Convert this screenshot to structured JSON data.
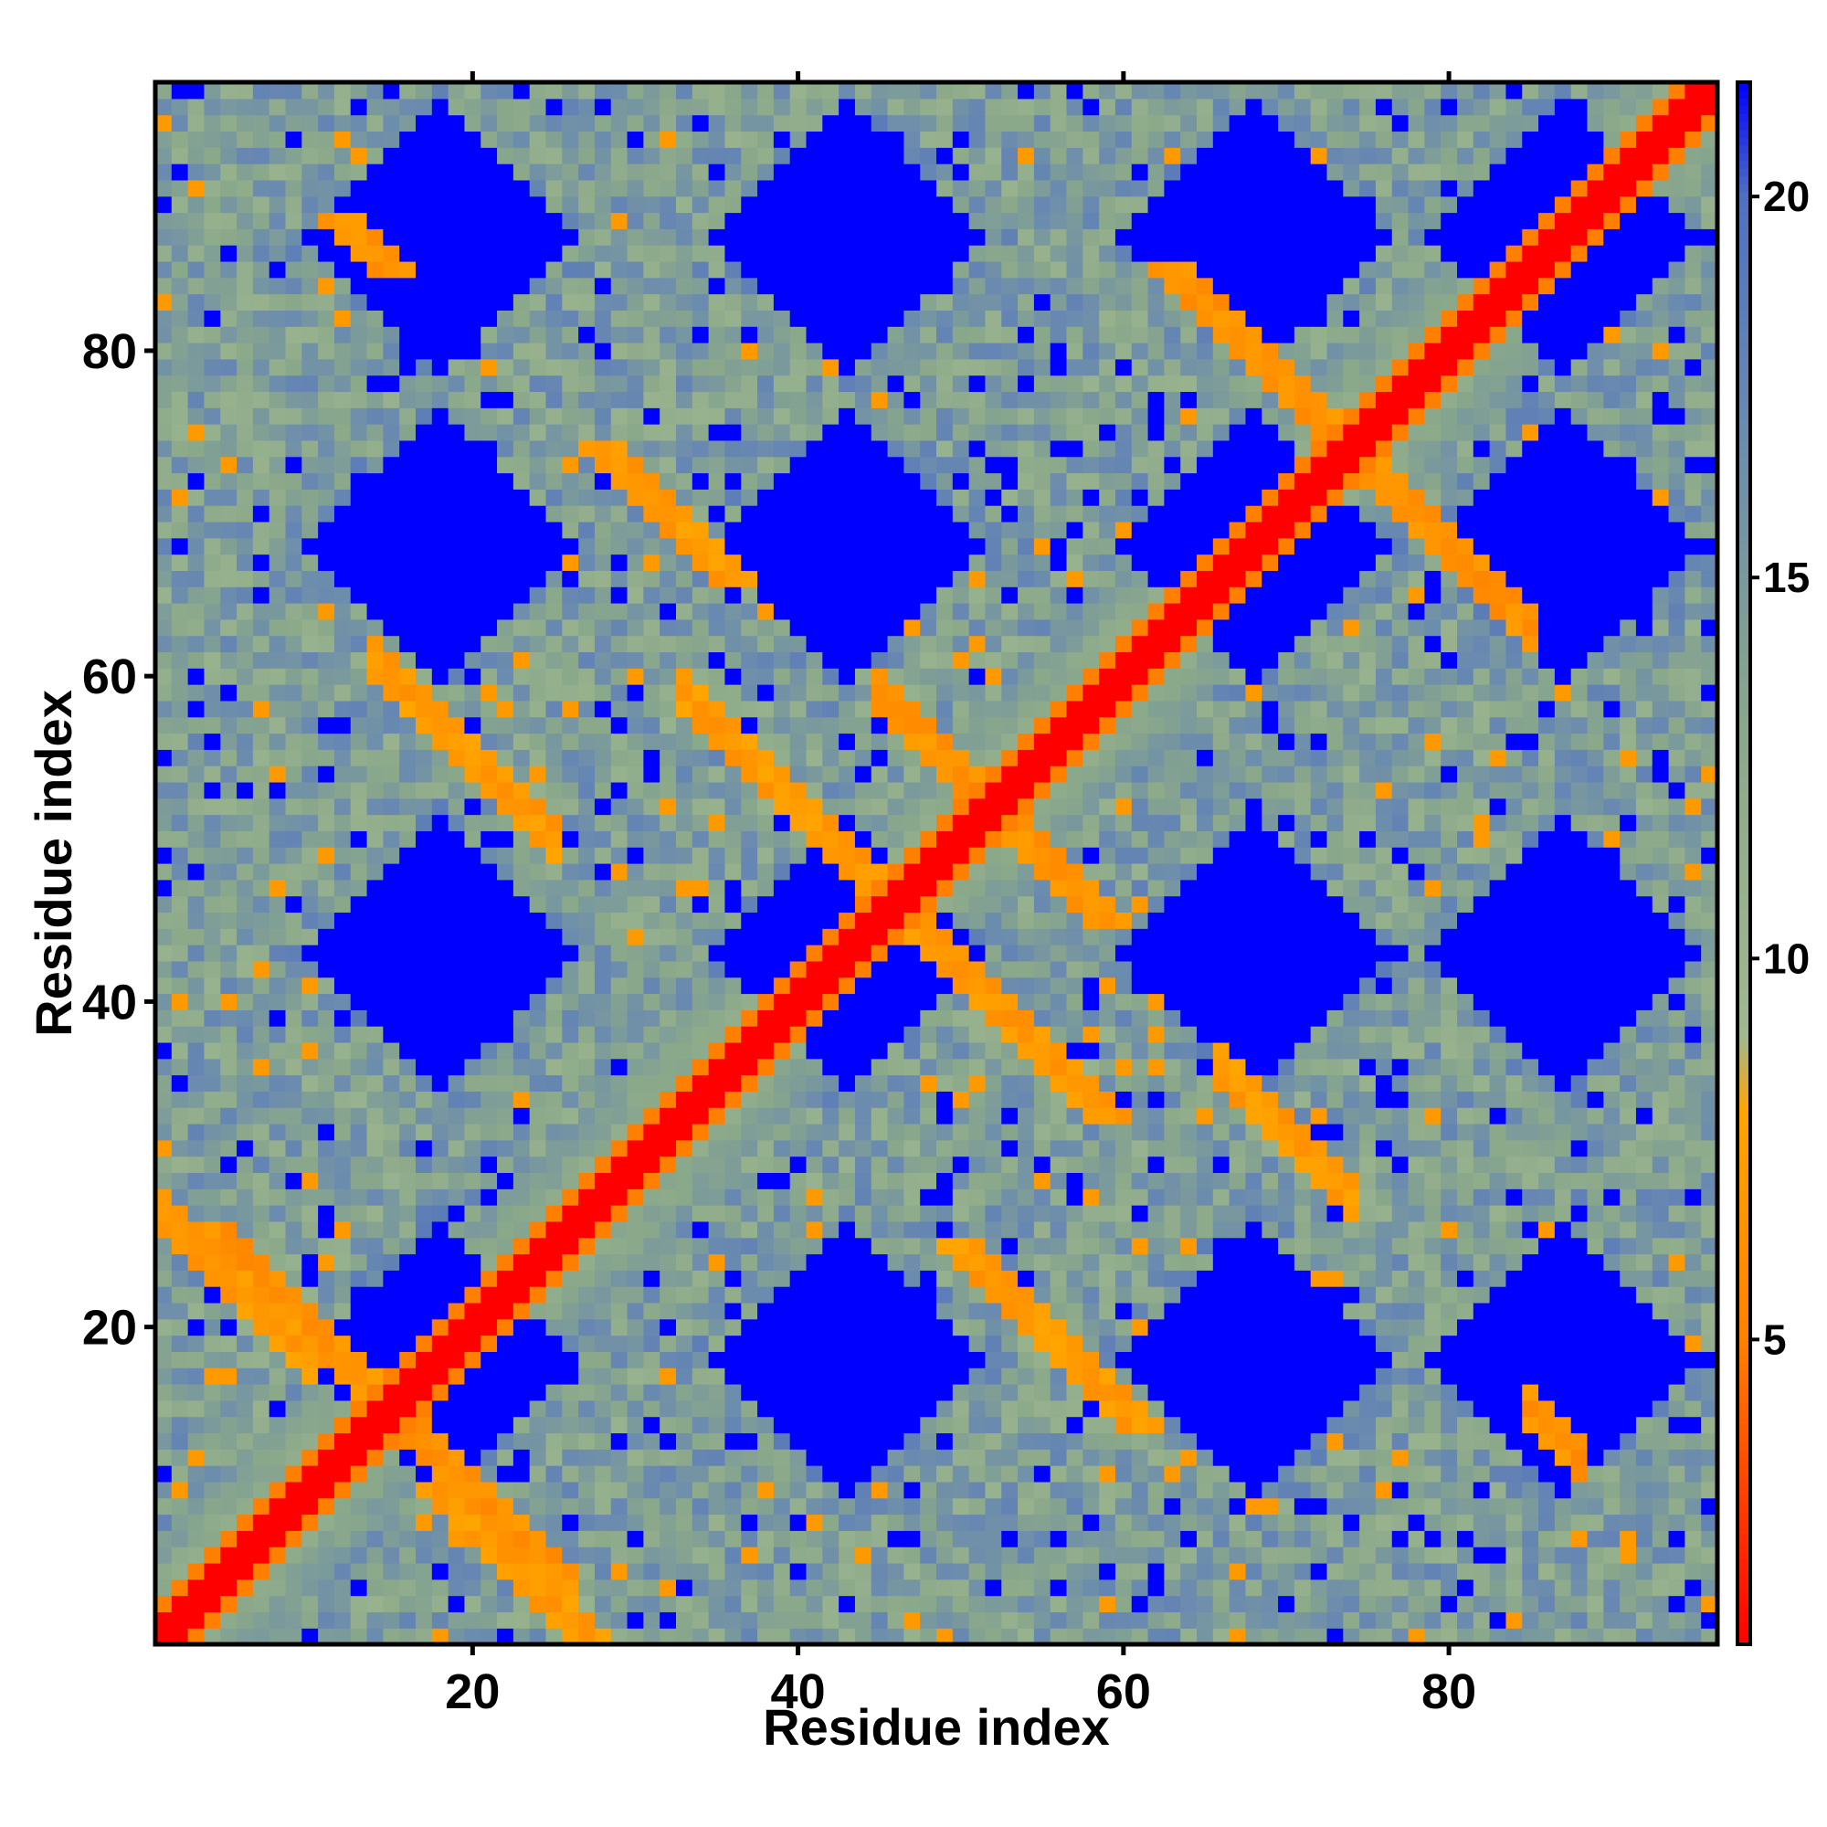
{
  "chart_data": {
    "type": "heatmap",
    "title": "",
    "xlabel": "Residue index",
    "ylabel": "Residue index",
    "x_range": [
      1,
      96
    ],
    "y_range": [
      1,
      96
    ],
    "x_ticks": [
      20,
      40,
      60,
      80
    ],
    "y_ticks": [
      20,
      40,
      60,
      80
    ],
    "x_tick_labels": [
      "20",
      "40",
      "60",
      "80"
    ],
    "y_tick_labels": [
      "20",
      "40",
      "60",
      "80"
    ],
    "grid": false,
    "colorbar": {
      "placement": "right",
      "range": [
        1,
        21.5
      ],
      "ticks": [
        5,
        10,
        15,
        20
      ],
      "tick_labels": [
        "5",
        "10",
        "15",
        "20"
      ],
      "colors": [
        {
          "value": 1,
          "color": "#ff0000"
        },
        {
          "value": 5,
          "color": "#ff8000"
        },
        {
          "value": 8,
          "color": "#ffa500"
        },
        {
          "value": 9,
          "color": "#a0b890"
        },
        {
          "value": 13,
          "color": "#8aa88a"
        },
        {
          "value": 17,
          "color": "#6a8ab0"
        },
        {
          "value": 20,
          "color": "#5070c0"
        },
        {
          "value": 21.5,
          "color": "#0000ff"
        }
      ]
    },
    "value_description": "Pairwise distance matrix between residues; symmetric, near-zero on the diagonal, with anti-diagonal contact bands (~5–8) and large blue regions (>21)",
    "features": {
      "diagonal_value": 1,
      "diagonal_neighbor_value": 5,
      "max_value": 21.5,
      "antidiagonal_bands": [
        {
          "i_plus_j": 28,
          "from": 1,
          "to": 10,
          "value": 7
        },
        {
          "i_plus_j": 30,
          "from": 14,
          "to": 26,
          "value": 6.5
        },
        {
          "i_plus_j": 75,
          "from": 14,
          "to": 25,
          "value": 7
        },
        {
          "i_plus_j": 92,
          "from": 33,
          "to": 56,
          "value": 7
        },
        {
          "i_plus_j": 104,
          "from": 45,
          "to": 56,
          "value": 6.5
        },
        {
          "i_plus_j": 102,
          "from": 66,
          "to": 74,
          "value": 7
        },
        {
          "i_plus_j": 100,
          "from": 85,
          "to": 88,
          "value": 6.5
        },
        {
          "i_plus_j": 148,
          "from": 64,
          "to": 85,
          "value": 6.5
        }
      ],
      "blue_voids_centers": [
        [
          18,
          18
        ],
        [
          18,
          43
        ],
        [
          18,
          68
        ],
        [
          18,
          87
        ],
        [
          43,
          18
        ],
        [
          43,
          43
        ],
        [
          43,
          68
        ],
        [
          43,
          87
        ],
        [
          68,
          18
        ],
        [
          68,
          43
        ],
        [
          68,
          68
        ],
        [
          68,
          87
        ],
        [
          87,
          18
        ],
        [
          87,
          43
        ],
        [
          87,
          68
        ],
        [
          87,
          87
        ]
      ]
    }
  }
}
